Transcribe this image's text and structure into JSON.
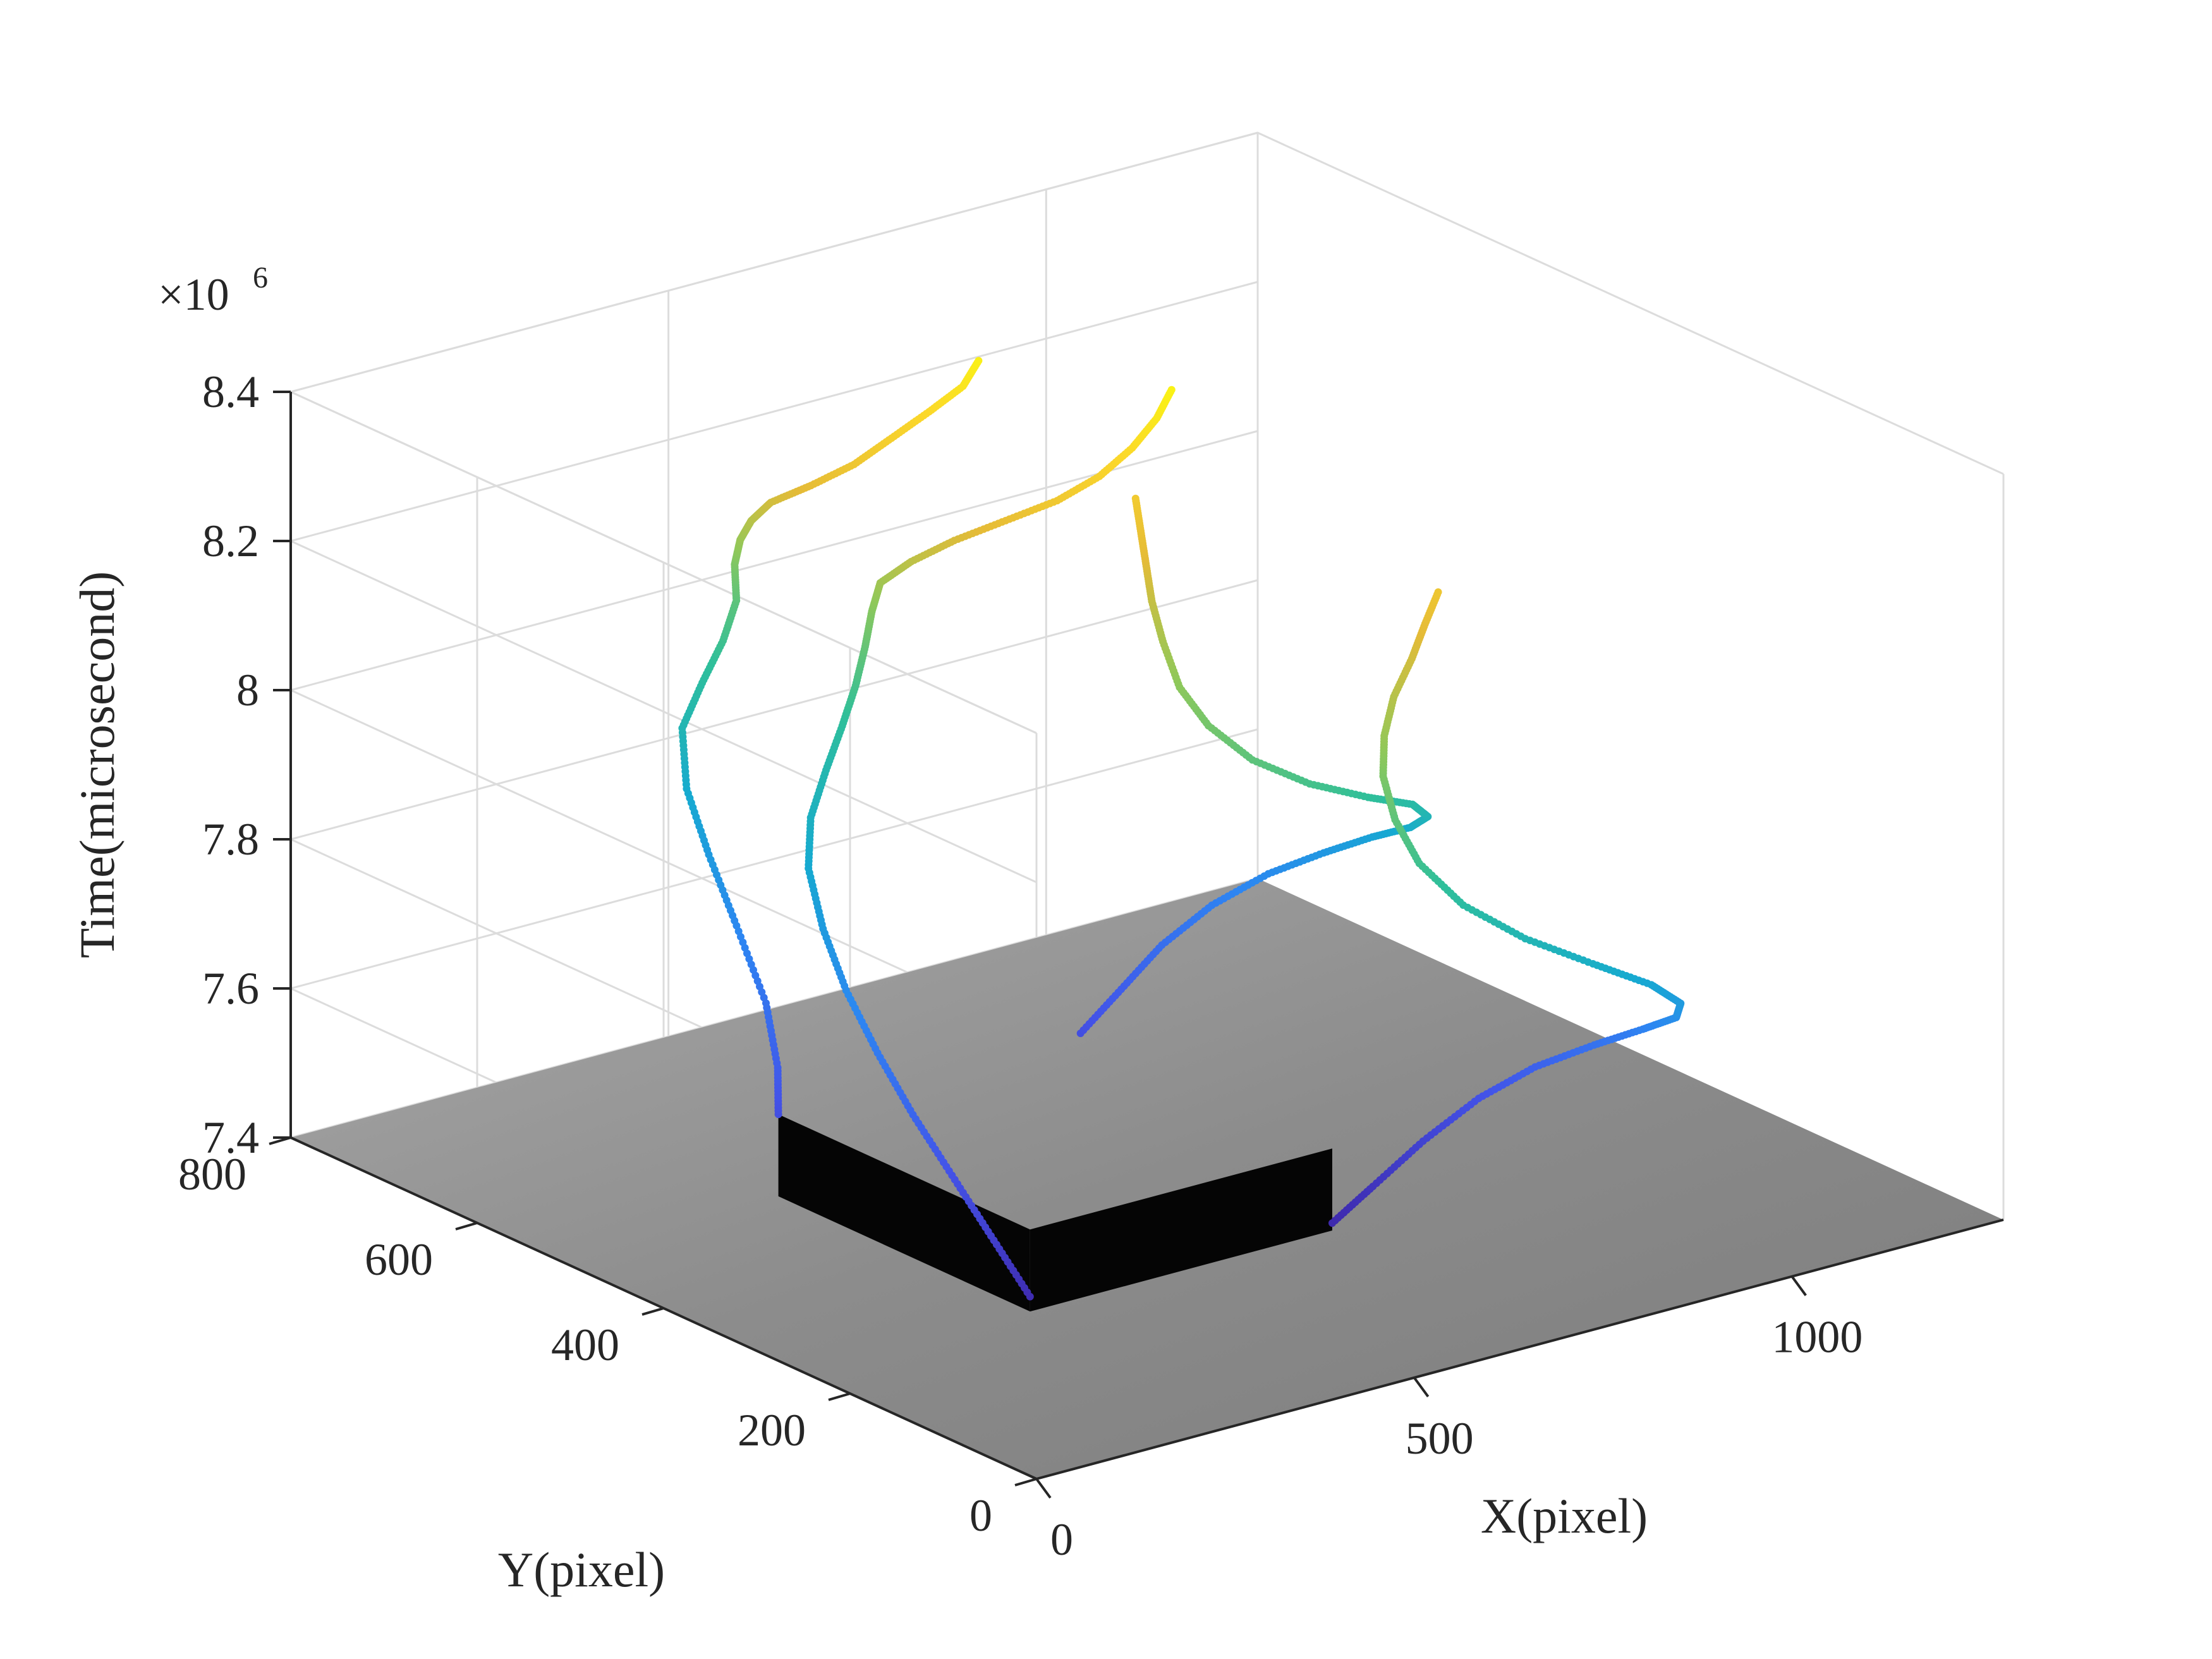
{
  "chart_data": {
    "type": "scatter",
    "projection": "3d",
    "xlabel": "X(pixel)",
    "ylabel": "Y(pixel)",
    "zlabel": "Time(microsecond)",
    "z_multiplier_label": "×10",
    "z_multiplier_exponent": "6",
    "xlim": [
      0,
      1280
    ],
    "ylim": [
      0,
      800
    ],
    "zlim": [
      7.4,
      8.4
    ],
    "x_ticks": [
      0,
      500,
      1000
    ],
    "y_ticks": [
      0,
      200,
      400,
      600,
      800
    ],
    "z_ticks": [
      7.4,
      7.6,
      7.8,
      8,
      8.2,
      8.4
    ],
    "x_tick_labels": [
      "0",
      "500",
      "1000"
    ],
    "y_tick_labels": [
      "0",
      "200",
      "400",
      "600",
      "800"
    ],
    "z_tick_labels": [
      "7.4",
      "7.6",
      "7.8",
      "8",
      "8.2",
      "8.4"
    ],
    "grid": true,
    "colormap": "parula",
    "color_by": "z",
    "colormap_stops": [
      "#3e26a8",
      "#4353e8",
      "#2d86f2",
      "#16aad0",
      "#2fbf9a",
      "#8fc85a",
      "#e5bb37",
      "#fbd72b",
      "#f9fb0e"
    ],
    "floor_color": "#8f8f8f",
    "box_color": "#050505",
    "box": {
      "x": [
        300,
        700
      ],
      "y": [
        250,
        520
      ],
      "z": [
        7.4,
        7.51
      ]
    },
    "series": [
      {
        "curve": "back-left edge",
        "points": [
          [
            300,
            520,
            7.51
          ],
          [
            330,
            545,
            7.55
          ],
          [
            370,
            590,
            7.6
          ],
          [
            405,
            650,
            7.66
          ],
          [
            430,
            700,
            7.72
          ],
          [
            450,
            740,
            7.78
          ],
          [
            475,
            765,
            7.84
          ],
          [
            520,
            780,
            7.88
          ],
          [
            560,
            790,
            7.92
          ],
          [
            590,
            800,
            7.96
          ],
          [
            600,
            810,
            8.0
          ],
          [
            595,
            800,
            8.04
          ],
          [
            585,
            780,
            8.08
          ],
          [
            580,
            755,
            8.12
          ],
          [
            590,
            720,
            8.16
          ],
          [
            610,
            690,
            8.2
          ],
          [
            635,
            670,
            8.24
          ],
          [
            660,
            650,
            8.28
          ],
          [
            680,
            630,
            8.32
          ],
          [
            690,
            620,
            8.36
          ]
        ]
      },
      {
        "curve": "front-left edge",
        "points": [
          [
            300,
            250,
            7.42
          ],
          [
            310,
            300,
            7.47
          ],
          [
            320,
            350,
            7.52
          ],
          [
            330,
            400,
            7.57
          ],
          [
            345,
            450,
            7.62
          ],
          [
            365,
            500,
            7.67
          ],
          [
            390,
            545,
            7.72
          ],
          [
            420,
            585,
            7.77
          ],
          [
            460,
            615,
            7.81
          ],
          [
            505,
            635,
            7.85
          ],
          [
            545,
            650,
            7.89
          ],
          [
            575,
            660,
            7.93
          ],
          [
            600,
            670,
            7.97
          ],
          [
            615,
            675,
            8.01
          ],
          [
            620,
            670,
            8.05
          ],
          [
            630,
            645,
            8.09
          ],
          [
            650,
            615,
            8.13
          ],
          [
            675,
            580,
            8.17
          ],
          [
            700,
            545,
            8.21
          ],
          [
            725,
            520,
            8.25
          ],
          [
            750,
            505,
            8.29
          ],
          [
            770,
            495,
            8.33
          ],
          [
            785,
            490,
            8.37
          ]
        ]
      },
      {
        "curve": "back-right edge",
        "points": [
          [
            700,
            520,
            7.51
          ],
          [
            760,
            525,
            7.55
          ],
          [
            820,
            530,
            7.59
          ],
          [
            880,
            525,
            7.63
          ],
          [
            930,
            505,
            7.67
          ],
          [
            960,
            470,
            7.71
          ],
          [
            975,
            430,
            7.75
          ],
          [
            970,
            385,
            7.79
          ],
          [
            950,
            350,
            7.83
          ],
          [
            905,
            330,
            7.87
          ],
          [
            840,
            325,
            7.9
          ],
          [
            775,
            335,
            7.93
          ],
          [
            730,
            360,
            7.96
          ],
          [
            715,
            395,
            7.99
          ],
          [
            720,
            430,
            8.02
          ],
          [
            735,
            460,
            8.06
          ],
          [
            745,
            480,
            8.1
          ],
          [
            750,
            490,
            8.14
          ],
          [
            755,
            500,
            8.18
          ],
          [
            760,
            510,
            8.22
          ]
        ]
      },
      {
        "curve": "front-right edge",
        "points": [
          [
            700,
            250,
            7.41
          ],
          [
            760,
            255,
            7.44
          ],
          [
            830,
            258,
            7.48
          ],
          [
            900,
            255,
            7.52
          ],
          [
            950,
            235,
            7.56
          ],
          [
            985,
            200,
            7.6
          ],
          [
            1000,
            160,
            7.64
          ],
          [
            995,
            120,
            7.68
          ],
          [
            970,
            95,
            7.72
          ],
          [
            925,
            90,
            7.76
          ],
          [
            860,
            100,
            7.8
          ],
          [
            795,
            120,
            7.84
          ],
          [
            750,
            150,
            7.88
          ],
          [
            735,
            185,
            7.92
          ],
          [
            740,
            215,
            7.96
          ],
          [
            755,
            240,
            8.0
          ],
          [
            775,
            255,
            8.04
          ],
          [
            800,
            265,
            8.08
          ],
          [
            830,
            270,
            8.12
          ],
          [
            850,
            272,
            8.16
          ],
          [
            870,
            273,
            8.2
          ]
        ]
      }
    ]
  }
}
